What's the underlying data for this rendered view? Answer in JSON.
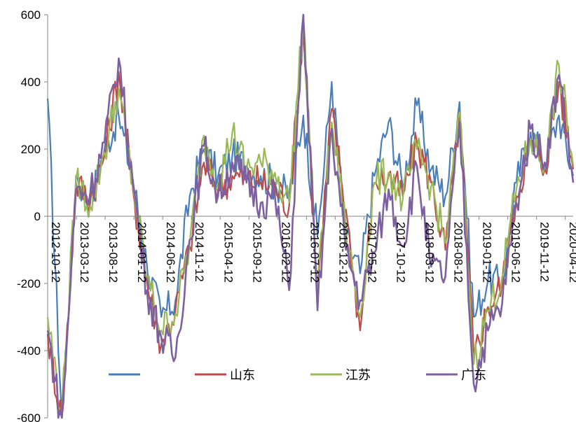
{
  "chart_data": {
    "type": "line",
    "title": "",
    "xlabel": "",
    "ylabel": "",
    "ylim": [
      -600,
      600
    ],
    "y_ticks": [
      -600,
      -400,
      -200,
      0,
      200,
      400,
      600
    ],
    "grid": false,
    "legend_position": "bottom",
    "x_tick_labels": [
      "2012-10-12",
      "2013-03-12",
      "2013-08-12",
      "2014-01-12",
      "2014-06-12",
      "2014-11-12",
      "2015-04-12",
      "2015-09-12",
      "2016-02-12",
      "2016-07-12",
      "2016-12-12",
      "2017-05-12",
      "2017-10-12",
      "2018-03-12",
      "2018-08-12",
      "2019-01-12",
      "2019-06-12",
      "2019-11-12",
      "2020-04-12"
    ],
    "x": [
      "2012-10",
      "2013-01",
      "2013-03",
      "2013-05",
      "2013-08",
      "2013-10",
      "2014-01",
      "2014-04",
      "2014-06",
      "2014-09",
      "2014-11",
      "2015-02",
      "2015-04",
      "2015-07",
      "2015-09",
      "2015-12",
      "2016-02",
      "2016-05",
      "2016-07",
      "2016-09",
      "2016-12",
      "2017-03",
      "2017-05",
      "2017-08",
      "2017-10",
      "2018-01",
      "2018-03",
      "2018-06",
      "2018-08",
      "2018-11",
      "2019-01",
      "2019-04",
      "2019-06",
      "2019-09",
      "2019-11",
      "2020-02",
      "2020-04",
      "2020-05"
    ],
    "series": [
      {
        "name": "",
        "color": "#4a7ebb",
        "values": [
          350,
          -600,
          120,
          40,
          200,
          300,
          110,
          -150,
          -300,
          -250,
          60,
          200,
          120,
          180,
          150,
          120,
          100,
          60,
          300,
          -60,
          400,
          -70,
          -170,
          120,
          280,
          90,
          330,
          140,
          60,
          340,
          -300,
          -190,
          -200,
          100,
          250,
          160,
          300,
          120
        ]
      },
      {
        "name": "山东",
        "color": "#be4b48",
        "values": [
          -350,
          -610,
          100,
          50,
          180,
          430,
          80,
          -200,
          -380,
          -280,
          -90,
          160,
          80,
          120,
          110,
          100,
          90,
          30,
          560,
          -240,
          320,
          20,
          -340,
          100,
          120,
          60,
          220,
          100,
          -100,
          300,
          -420,
          -270,
          -200,
          60,
          220,
          140,
          400,
          140
        ]
      },
      {
        "name": "江苏",
        "color": "#98b954",
        "values": [
          -300,
          -590,
          110,
          30,
          190,
          380,
          90,
          -180,
          -340,
          -290,
          -80,
          240,
          100,
          250,
          140,
          160,
          130,
          40,
          590,
          -220,
          280,
          -40,
          -300,
          100,
          130,
          50,
          200,
          90,
          -80,
          310,
          -440,
          -280,
          -180,
          80,
          230,
          150,
          450,
          150
        ]
      },
      {
        "name": "广东",
        "color": "#7d60a0",
        "values": [
          -340,
          -620,
          80,
          70,
          220,
          470,
          100,
          -220,
          -360,
          -420,
          -70,
          210,
          60,
          160,
          100,
          40,
          60,
          -220,
          600,
          -280,
          260,
          -100,
          -250,
          -110,
          80,
          -90,
          150,
          -150,
          -180,
          280,
          -500,
          -340,
          -260,
          40,
          260,
          160,
          420,
          100
        ]
      }
    ]
  }
}
